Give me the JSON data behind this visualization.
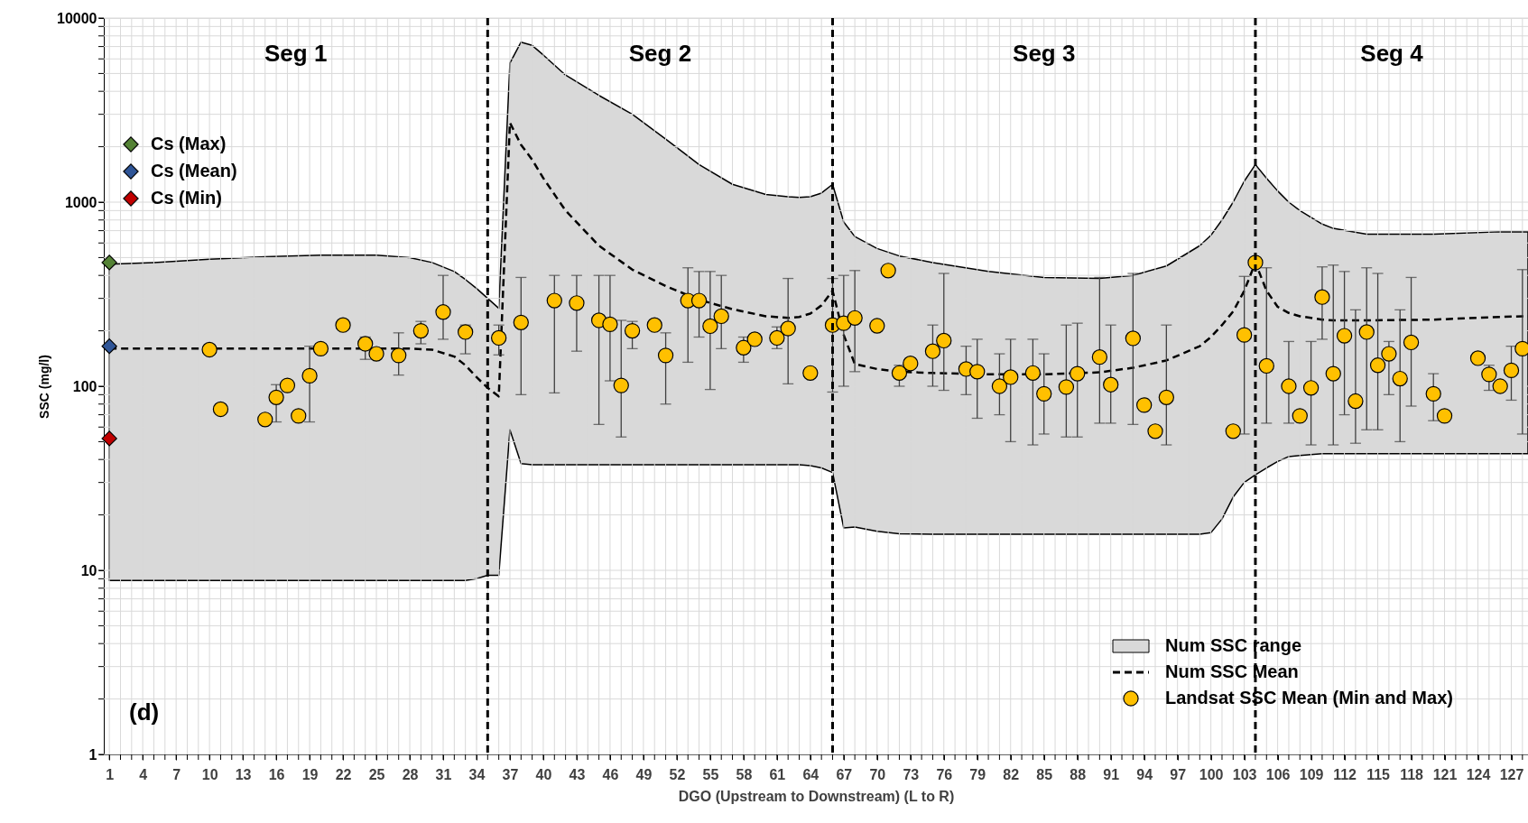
{
  "chart_data": {
    "type": "scatter",
    "xlabel": "DGO (Upstream to Downstream) (L to R)",
    "ylabel": "SSC (mg/l)",
    "xlim": [
      0.5,
      128.5
    ],
    "ylim": [
      1,
      10000
    ],
    "xticks": [
      1,
      4,
      7,
      10,
      13,
      16,
      19,
      22,
      25,
      28,
      31,
      34,
      37,
      40,
      43,
      46,
      49,
      52,
      55,
      58,
      61,
      64,
      67,
      70,
      73,
      76,
      79,
      82,
      85,
      88,
      91,
      94,
      97,
      100,
      103,
      106,
      109,
      112,
      115,
      118,
      121,
      124,
      127
    ],
    "yticks": [
      1,
      10,
      100,
      1000,
      10000
    ],
    "log": "y",
    "grid": true,
    "legend": "bottom right",
    "series": [
      {
        "name": "Num SSC range",
        "type": "area",
        "color": "#d9d9d9"
      },
      {
        "name": "Num SSC Mean",
        "type": "line",
        "color": "#000000",
        "line_style": "dashed",
        "x": [
          1,
          5,
          10,
          15,
          20,
          25,
          28,
          30,
          32,
          33,
          34,
          35,
          36,
          37,
          38,
          39,
          40,
          42,
          45,
          48,
          51,
          54,
          57,
          60,
          62,
          63,
          64,
          65,
          66,
          67,
          68,
          70,
          72,
          75,
          80,
          85,
          90,
          93,
          96,
          99,
          100,
          101,
          102,
          103,
          104,
          105,
          106,
          107,
          108,
          110,
          111,
          114,
          120,
          126,
          128.5
        ],
        "upper": [
          460,
          470,
          490,
          505,
          515,
          515,
          500,
          470,
          420,
          380,
          340,
          300,
          265,
          5700,
          7400,
          7100,
          6300,
          4900,
          3800,
          3000,
          2200,
          1600,
          1250,
          1100,
          1070,
          1060,
          1070,
          1120,
          1250,
          780,
          650,
          560,
          510,
          470,
          420,
          390,
          385,
          400,
          450,
          580,
          660,
          800,
          1000,
          1300,
          1600,
          1350,
          1150,
          1000,
          900,
          760,
          720,
          670,
          670,
          690,
          690
        ],
        "lower": [
          8.8,
          8.8,
          8.8,
          8.8,
          8.8,
          8.8,
          8.8,
          8.8,
          8.8,
          8.8,
          9.0,
          9.4,
          9.4,
          58,
          38,
          37.5,
          37.5,
          37.5,
          37.5,
          37.5,
          37.5,
          37.5,
          37.5,
          37.5,
          37.5,
          37.5,
          37,
          36,
          34,
          17,
          17.2,
          16.3,
          15.8,
          15.7,
          15.7,
          15.7,
          15.7,
          15.7,
          15.7,
          15.7,
          16,
          19,
          25,
          30,
          33,
          36,
          39,
          41.5,
          42,
          43,
          43,
          43,
          43,
          43,
          43
        ],
        "values": [
          160,
          160,
          160,
          160,
          160,
          160,
          160,
          158,
          145,
          130,
          112,
          98,
          88,
          2700,
          2050,
          1700,
          1350,
          900,
          580,
          430,
          350,
          295,
          262,
          240,
          235,
          238,
          248,
          275,
          330,
          190,
          132,
          124,
          120,
          118,
          116,
          116,
          119,
          126,
          138,
          165,
          185,
          215,
          255,
          330,
          470,
          330,
          270,
          250,
          240,
          230,
          228,
          228,
          230,
          238,
          240
        ]
      },
      {
        "name": "Landsat SSC Mean (Min and Max)",
        "marker": "circle",
        "color": "#ffc000",
        "x": [
          10,
          11,
          15,
          16,
          17,
          18,
          19,
          20,
          22,
          24,
          25,
          27,
          29,
          31,
          33,
          36,
          38,
          41,
          43,
          45,
          46,
          47,
          48,
          50,
          51,
          53,
          54,
          55,
          56,
          58,
          59,
          61,
          62,
          64,
          66,
          67,
          68,
          70,
          71,
          72,
          73,
          75,
          76,
          78,
          79,
          81,
          82,
          84,
          85,
          87,
          88,
          90,
          91,
          93,
          94,
          95,
          96,
          102,
          103,
          104,
          105,
          107,
          108,
          109,
          110,
          111,
          112,
          113,
          114,
          115,
          116,
          117,
          118,
          120,
          121,
          124,
          125,
          126,
          127,
          128
        ],
        "values": [
          158,
          75,
          66,
          87,
          101,
          69,
          114,
          160,
          215,
          170,
          150,
          147,
          200,
          253,
          197,
          183,
          222,
          292,
          283,
          228,
          217,
          101,
          200,
          215,
          147,
          292,
          292,
          212,
          240,
          162,
          180,
          183,
          206,
          118,
          215,
          220,
          235,
          213,
          425,
          118,
          133,
          155,
          177,
          124,
          120,
          100,
          112,
          118,
          91,
          99,
          117,
          144,
          102,
          182,
          79,
          57,
          87,
          57,
          190,
          470,
          129,
          100,
          69,
          98,
          305,
          117,
          188,
          83,
          197,
          130,
          150,
          110,
          173,
          91,
          69,
          142,
          116,
          100,
          122,
          160
        ],
        "errors": [
          null,
          null,
          null,
          [
            64,
            102
          ],
          null,
          null,
          [
            64,
            165
          ],
          null,
          null,
          [
            140,
            185
          ],
          null,
          [
            115,
            195
          ],
          [
            170,
            225
          ],
          [
            180,
            400
          ],
          [
            150,
            215
          ],
          [
            148,
            215
          ],
          [
            90,
            390
          ],
          [
            92,
            400
          ],
          [
            155,
            400
          ],
          [
            62,
            400
          ],
          [
            107,
            400
          ],
          [
            53,
            228
          ],
          [
            160,
            225
          ],
          null,
          [
            80,
            195
          ],
          [
            135,
            440
          ],
          [
            185,
            420
          ],
          [
            96,
            420
          ],
          [
            160,
            400
          ],
          [
            135,
            185
          ],
          null,
          [
            160,
            210
          ],
          [
            103,
            385
          ],
          null,
          [
            93,
            385
          ],
          [
            100,
            400
          ],
          [
            120,
            425
          ],
          null,
          null,
          [
            100,
            130
          ],
          null,
          [
            100,
            215
          ],
          [
            95,
            410
          ],
          [
            90,
            165
          ],
          [
            67,
            180
          ],
          [
            70,
            150
          ],
          [
            50,
            180
          ],
          [
            48,
            180
          ],
          [
            55,
            150
          ],
          [
            53,
            215
          ],
          [
            53,
            220
          ],
          [
            63,
            390
          ],
          [
            63,
            215
          ],
          [
            62,
            410
          ],
          null,
          null,
          [
            48,
            215
          ],
          null,
          [
            55,
            395
          ],
          null,
          [
            63,
            440
          ],
          [
            63,
            175
          ],
          null,
          [
            48,
            175
          ],
          [
            180,
            445
          ],
          [
            48,
            455
          ],
          [
            70,
            420
          ],
          [
            49,
            260
          ],
          [
            58,
            440
          ],
          [
            58,
            410
          ],
          [
            90,
            175
          ],
          [
            50,
            260
          ],
          [
            78,
            390
          ],
          [
            65,
            117
          ],
          null,
          null,
          [
            95,
            130
          ],
          null,
          [
            84,
            165
          ],
          [
            55,
            430
          ]
        ]
      },
      {
        "name": "Cs (Max)",
        "type": "scatter",
        "marker": "diamond",
        "color": "#548235",
        "x": [
          1
        ],
        "values": [
          470
        ]
      },
      {
        "name": "Cs (Mean)",
        "type": "scatter",
        "marker": "diamond",
        "color": "#2f5597",
        "x": [
          1
        ],
        "values": [
          165
        ]
      },
      {
        "name": "Cs (Min)",
        "type": "scatter",
        "marker": "diamond",
        "color": "#c00000",
        "x": [
          1
        ],
        "values": [
          52
        ]
      }
    ],
    "ref_lines": [
      {
        "axis": "x",
        "value": 35,
        "color": "#000000",
        "line_style": "dashed"
      },
      {
        "axis": "x",
        "value": 66,
        "color": "#000000",
        "line_style": "dashed"
      },
      {
        "axis": "x",
        "value": 104,
        "color": "#000000",
        "line_style": "dashed"
      }
    ],
    "annotations": [
      "Seg 1",
      "Seg 2",
      "Seg 3",
      "Seg 4",
      "(d)"
    ]
  }
}
